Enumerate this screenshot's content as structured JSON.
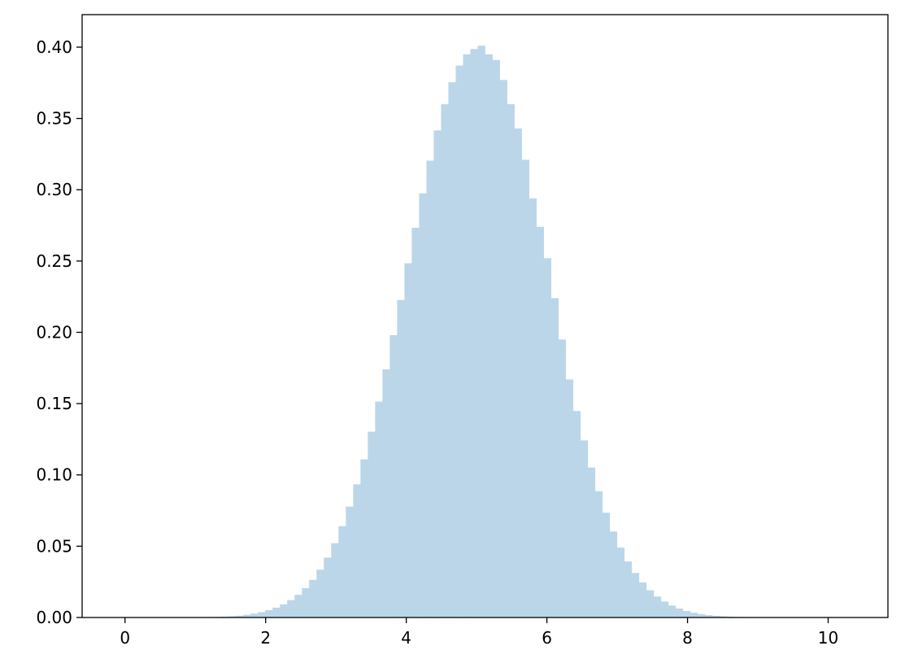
{
  "chart_data": {
    "type": "bar",
    "subtype": "histogram",
    "title": "",
    "xlabel": "",
    "ylabel": "",
    "bin_start": -0.09,
    "bin_width": 0.1042,
    "values": [
      0,
      0,
      0,
      0,
      0,
      0,
      0,
      0,
      0,
      0,
      0.0001,
      0.0002,
      0.0003,
      0.0004,
      0.0006,
      0.0009,
      0.0013,
      0.0019,
      0.0027,
      0.0037,
      0.0051,
      0.0069,
      0.0092,
      0.0122,
      0.0159,
      0.0206,
      0.0264,
      0.0335,
      0.042,
      0.0521,
      0.0641,
      0.0778,
      0.0934,
      0.1109,
      0.1303,
      0.1514,
      0.174,
      0.198,
      0.2227,
      0.2484,
      0.2733,
      0.2975,
      0.3204,
      0.3416,
      0.36,
      0.3754,
      0.3871,
      0.395,
      0.3987,
      0.401,
      0.395,
      0.391,
      0.377,
      0.36,
      0.343,
      0.321,
      0.294,
      0.274,
      0.252,
      0.224,
      0.195,
      0.167,
      0.1448,
      0.1242,
      0.1052,
      0.0886,
      0.0735,
      0.0603,
      0.049,
      0.0393,
      0.0312,
      0.0246,
      0.0191,
      0.0147,
      0.0112,
      0.0084,
      0.0063,
      0.0046,
      0.0034,
      0.0024,
      0.0017,
      0.0012,
      0.0009,
      0.0006,
      0.0004,
      0.0003,
      0.0002,
      0.0001,
      0,
      0,
      0,
      0,
      0,
      0,
      0,
      0,
      0,
      0,
      0,
      0
    ],
    "xlim": [
      -0.61,
      10.85
    ],
    "ylim": [
      0,
      0.4228
    ],
    "xticks": [
      0,
      2,
      4,
      6,
      8,
      10
    ],
    "xtick_labels": [
      "0",
      "2",
      "4",
      "6",
      "8",
      "10"
    ],
    "yticks": [
      0,
      0.05,
      0.1,
      0.15,
      0.2,
      0.25,
      0.3,
      0.35,
      0.4
    ],
    "ytick_labels": [
      "0.00",
      "0.05",
      "0.10",
      "0.15",
      "0.20",
      "0.25",
      "0.30",
      "0.35",
      "0.40"
    ],
    "grid": false,
    "bar_color": "#bcd6e9"
  }
}
